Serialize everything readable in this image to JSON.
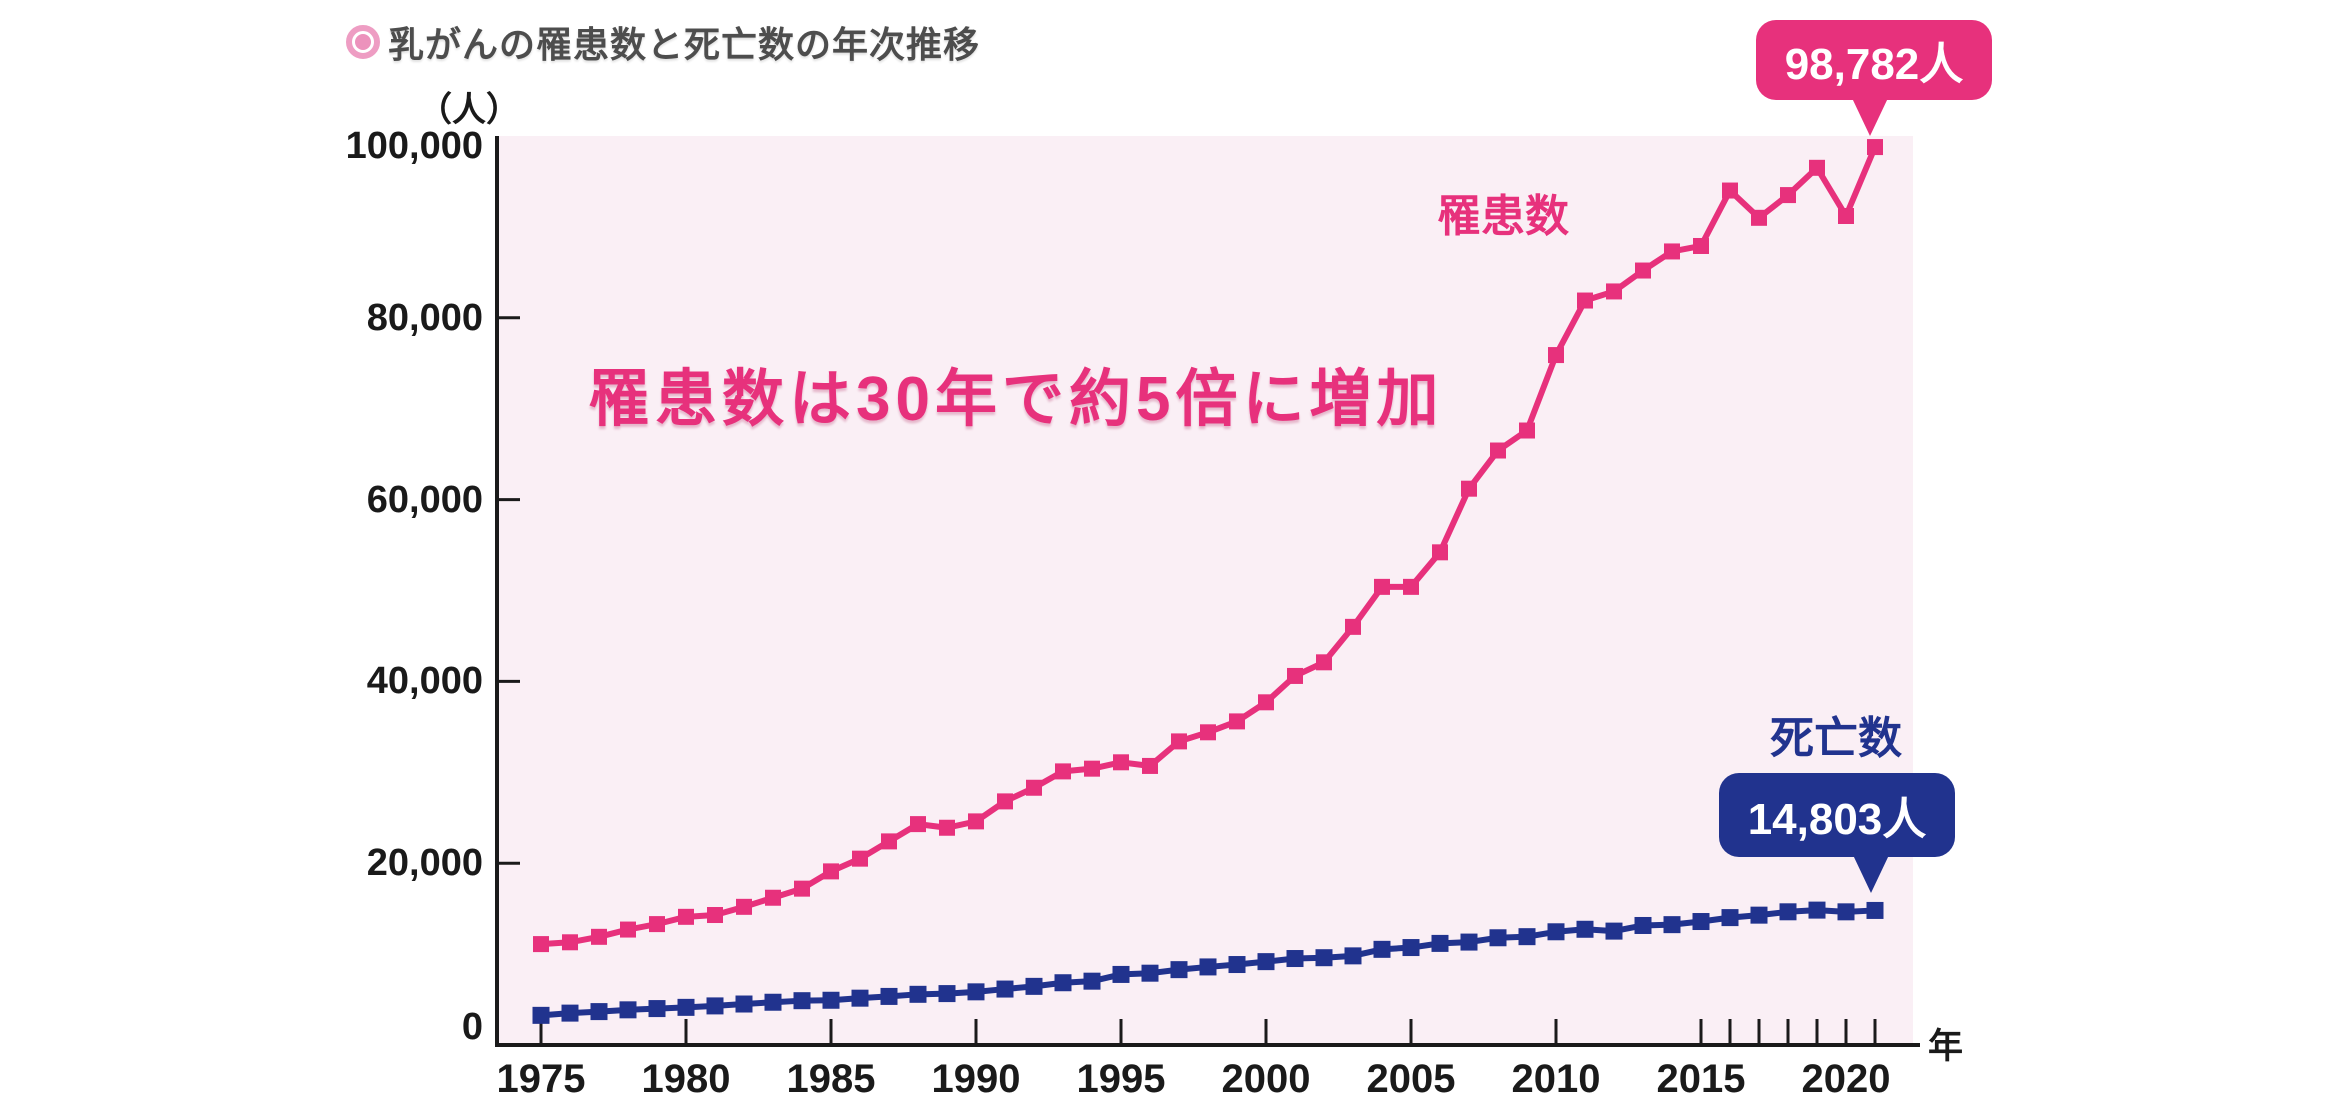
{
  "page": {
    "background": "#ffffff"
  },
  "colors": {
    "incidence": "#E7317C",
    "deaths": "#21338E",
    "plot_background": "#FAEFF5",
    "axis": "#1A1A1A",
    "title_text": "#4D4D4D",
    "bullet_ring": "#EE9DC3",
    "bullet_dot": "#EC92BC"
  },
  "chart_data": {
    "type": "line",
    "title": "乳がんの罹患数と死亡数の年次推移",
    "unit_label": "（人）",
    "xlabel": "年",
    "ylabel": "",
    "ylim": [
      0,
      100000
    ],
    "grid": "off",
    "legend_position": "inline-labels",
    "x": [
      1975,
      1976,
      1977,
      1978,
      1979,
      1980,
      1981,
      1982,
      1983,
      1984,
      1985,
      1986,
      1987,
      1988,
      1989,
      1990,
      1991,
      1992,
      1993,
      1994,
      1995,
      1996,
      1997,
      1998,
      1999,
      2000,
      2001,
      2002,
      2003,
      2004,
      2005,
      2006,
      2007,
      2008,
      2009,
      2010,
      2011,
      2012,
      2013,
      2014,
      2015,
      2016,
      2017,
      2018,
      2019,
      2020,
      2021
    ],
    "series": [
      {
        "name": "罹患数",
        "color": "#E7317C",
        "values": [
          11100,
          11300,
          11900,
          12700,
          13300,
          14100,
          14300,
          15200,
          16200,
          17200,
          19100,
          20500,
          22400,
          24300,
          23900,
          24600,
          26800,
          28300,
          30100,
          30400,
          31100,
          30700,
          33400,
          34400,
          35600,
          37700,
          40600,
          42100,
          46000,
          50400,
          50400,
          54200,
          61200,
          65400,
          67600,
          75900,
          81900,
          82900,
          85200,
          87300,
          87900,
          94000,
          91000,
          93500,
          96500,
          91200,
          98782
        ]
      },
      {
        "name": "死亡数",
        "color": "#21338E",
        "values": [
          3262,
          3508,
          3674,
          3869,
          4007,
          4141,
          4301,
          4509,
          4704,
          4875,
          4922,
          5152,
          5344,
          5576,
          5656,
          5848,
          6154,
          6451,
          6850,
          7022,
          7763,
          7900,
          8290,
          8589,
          8852,
          9171,
          9513,
          9604,
          9806,
          10524,
          10721,
          11177,
          11323,
          11797,
          11918,
          12455,
          12731,
          12529,
          13148,
          13240,
          13584,
          14015,
          14285,
          14653,
          14839,
          14650,
          14803
        ]
      }
    ],
    "y_tick_values": [
      0,
      20000,
      40000,
      60000,
      80000,
      100000
    ],
    "y_tick_labels": [
      "0",
      "20,000",
      "40,000",
      "60,000",
      "80,000",
      "100,000"
    ],
    "x_tick_labels": [
      "1975",
      "1980",
      "1985",
      "1990",
      "1995",
      "2000",
      "2005",
      "2010",
      "2015",
      "2020"
    ],
    "minor_x_ticks": [
      2016,
      2017,
      2018,
      2019,
      2020,
      2021
    ],
    "annotation": "罹患数は30年で約5倍に増加",
    "callouts": {
      "incidence": "98,782人",
      "deaths": "14,803人"
    }
  }
}
